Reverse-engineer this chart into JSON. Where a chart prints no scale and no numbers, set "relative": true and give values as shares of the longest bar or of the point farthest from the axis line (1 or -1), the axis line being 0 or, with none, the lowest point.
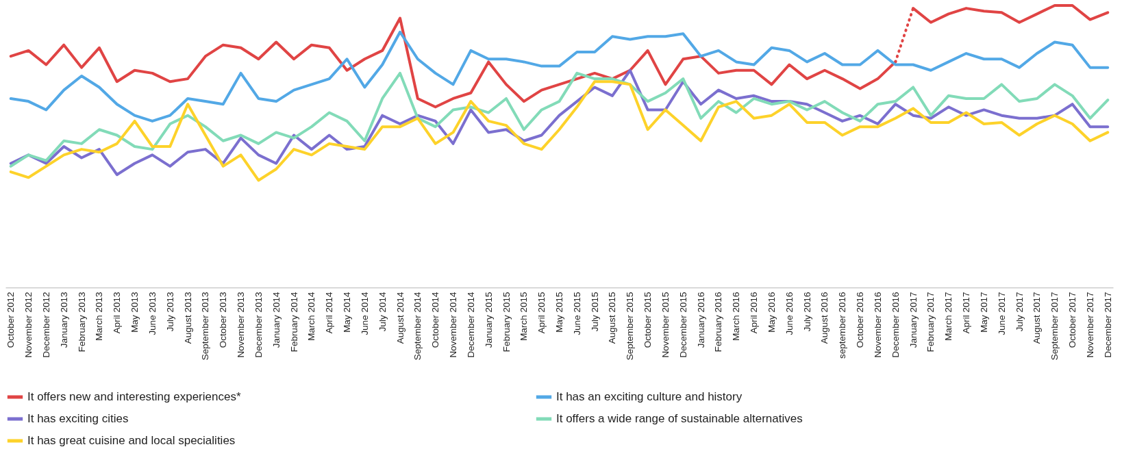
{
  "chart_data": {
    "type": "line",
    "relative": true,
    "legend": "bottom",
    "tick_labels": "x",
    "categories": [
      "October 2012",
      "November 2012",
      "December 2012",
      "January 2013",
      "February 2013",
      "March 2013",
      "April 2013",
      "May 2013",
      "June 2013",
      "July 2013",
      "August 2013",
      "September 2013",
      "October 2013",
      "November 2013",
      "December 2013",
      "January 2014",
      "February 2014",
      "March 2014",
      "April 2014",
      "May 2014",
      "June 2014",
      "July 2014",
      "August 2014",
      "September 2014",
      "October 2014",
      "November 2014",
      "December 2014",
      "January 2015",
      "February 2015",
      "March 2015",
      "April 2015",
      "May 2015",
      "June 2015",
      "July 2015",
      "August 2015",
      "September 2015",
      "October 2015",
      "November 2015",
      "December 2015",
      "January 2016",
      "February 2016",
      "March 2016",
      "April 2016",
      "May 2016",
      "June 2016",
      "July 2016",
      "August 2016",
      "september 2016",
      "October 2016",
      "November 2016",
      "December 2016",
      "January 2017",
      "February 2017",
      "March 2017",
      "April 2017",
      "May 2017",
      "June 2017",
      "July 2017",
      "August 2017",
      "September 2017",
      "October 2017",
      "November 2017",
      "December 2017"
    ],
    "series": [
      {
        "name": "It offers new and interesting experiences*",
        "color": "#e04444",
        "line_style": "solid",
        "values": [
          0.82,
          0.84,
          0.79,
          0.86,
          0.78,
          0.85,
          0.73,
          0.77,
          0.76,
          0.73,
          0.74,
          0.82,
          0.86,
          0.85,
          0.81,
          0.87,
          0.81,
          0.86,
          0.85,
          0.77,
          0.81,
          0.84,
          0.955,
          0.67,
          0.64,
          0.67,
          0.69,
          0.8,
          0.72,
          0.66,
          0.7,
          0.72,
          0.74,
          0.76,
          0.74,
          0.77,
          0.84,
          0.72,
          0.81,
          0.82,
          0.76,
          0.77,
          0.77,
          0.72,
          0.79,
          0.74,
          0.77,
          0.74,
          0.705,
          0.74,
          0.8,
          null,
          null,
          null,
          null,
          null,
          null,
          null,
          null,
          null,
          null,
          null,
          null
        ]
      },
      {
        "color": "#e04444",
        "line_style": "dotted",
        "values": [
          null,
          null,
          null,
          null,
          null,
          null,
          null,
          null,
          null,
          null,
          null,
          null,
          null,
          null,
          null,
          null,
          null,
          null,
          null,
          null,
          null,
          null,
          null,
          null,
          null,
          null,
          null,
          null,
          null,
          null,
          null,
          null,
          null,
          null,
          null,
          null,
          null,
          null,
          null,
          null,
          null,
          null,
          null,
          null,
          null,
          null,
          null,
          null,
          null,
          null,
          0.8,
          0.99,
          null,
          null,
          null,
          null,
          null,
          null,
          null,
          null,
          null,
          null,
          null
        ]
      },
      {
        "color": "#e04444",
        "line_style": "solid",
        "values": [
          null,
          null,
          null,
          null,
          null,
          null,
          null,
          null,
          null,
          null,
          null,
          null,
          null,
          null,
          null,
          null,
          null,
          null,
          null,
          null,
          null,
          null,
          null,
          null,
          null,
          null,
          null,
          null,
          null,
          null,
          null,
          null,
          null,
          null,
          null,
          null,
          null,
          null,
          null,
          null,
          null,
          null,
          null,
          null,
          null,
          null,
          null,
          null,
          null,
          null,
          null,
          0.99,
          0.94,
          0.97,
          0.99,
          0.98,
          0.975,
          0.94,
          0.97,
          1.0,
          1.0,
          0.95,
          0.975
        ]
      },
      {
        "name": "It has an exciting culture and history",
        "color": "#52a8e6",
        "line_style": "solid",
        "values": [
          0.67,
          0.66,
          0.63,
          0.7,
          0.75,
          0.71,
          0.65,
          0.61,
          0.59,
          0.61,
          0.67,
          0.66,
          0.65,
          0.76,
          0.67,
          0.66,
          0.7,
          0.72,
          0.74,
          0.81,
          0.71,
          0.79,
          0.906,
          0.81,
          0.76,
          0.72,
          0.84,
          0.81,
          0.81,
          0.8,
          0.785,
          0.785,
          0.835,
          0.835,
          0.89,
          0.88,
          0.89,
          0.89,
          0.9,
          0.82,
          0.84,
          0.8,
          0.79,
          0.85,
          0.84,
          0.8,
          0.83,
          0.79,
          0.79,
          0.84,
          0.79,
          0.79,
          0.77,
          0.8,
          0.83,
          0.81,
          0.81,
          0.78,
          0.83,
          0.87,
          0.86,
          0.78,
          0.78
        ]
      },
      {
        "name": "It has exciting cities",
        "color": "#7b6fcf",
        "line_style": "solid",
        "values": [
          0.44,
          0.47,
          0.44,
          0.5,
          0.46,
          0.49,
          0.4,
          0.44,
          0.47,
          0.43,
          0.48,
          0.49,
          0.44,
          0.53,
          0.47,
          0.44,
          0.54,
          0.49,
          0.54,
          0.49,
          0.5,
          0.61,
          0.58,
          0.61,
          0.59,
          0.51,
          0.63,
          0.55,
          0.56,
          0.52,
          0.54,
          0.61,
          0.66,
          0.71,
          0.68,
          0.77,
          0.63,
          0.63,
          0.73,
          0.65,
          0.7,
          0.67,
          0.68,
          0.66,
          0.66,
          0.65,
          0.62,
          0.59,
          0.61,
          0.58,
          0.65,
          0.61,
          0.6,
          0.64,
          0.61,
          0.63,
          0.61,
          0.6,
          0.6,
          0.61,
          0.65,
          0.57,
          0.57
        ]
      },
      {
        "name": "It offers a wide range of sustainable alternatives",
        "color": "#82dbb8",
        "line_style": "solid",
        "values": [
          0.43,
          0.47,
          0.45,
          0.52,
          0.51,
          0.56,
          0.54,
          0.5,
          0.49,
          0.58,
          0.61,
          0.57,
          0.52,
          0.54,
          0.51,
          0.55,
          0.53,
          0.57,
          0.62,
          0.59,
          0.52,
          0.67,
          0.76,
          0.6,
          0.57,
          0.63,
          0.64,
          0.62,
          0.67,
          0.56,
          0.63,
          0.66,
          0.76,
          0.74,
          0.74,
          0.72,
          0.66,
          0.69,
          0.74,
          0.6,
          0.66,
          0.62,
          0.67,
          0.65,
          0.66,
          0.63,
          0.66,
          0.62,
          0.59,
          0.65,
          0.66,
          0.71,
          0.61,
          0.68,
          0.67,
          0.67,
          0.72,
          0.66,
          0.67,
          0.72,
          0.68,
          0.6,
          0.665
        ]
      },
      {
        "name": "It has great cuisine and local specialities",
        "color": "#fdd22a",
        "line_style": "solid",
        "values": [
          0.41,
          0.39,
          0.43,
          0.47,
          0.49,
          0.48,
          0.51,
          0.59,
          0.5,
          0.5,
          0.65,
          0.54,
          0.43,
          0.47,
          0.38,
          0.42,
          0.49,
          0.47,
          0.51,
          0.5,
          0.49,
          0.57,
          0.57,
          0.6,
          0.51,
          0.55,
          0.66,
          0.59,
          0.575,
          0.51,
          0.49,
          0.56,
          0.64,
          0.73,
          0.73,
          0.72,
          0.56,
          0.63,
          0.575,
          0.52,
          0.64,
          0.66,
          0.6,
          0.61,
          0.65,
          0.585,
          0.585,
          0.54,
          0.57,
          0.57,
          0.6,
          0.635,
          0.585,
          0.585,
          0.62,
          0.58,
          0.585,
          0.54,
          0.58,
          0.61,
          0.58,
          0.52,
          0.55
        ]
      }
    ]
  }
}
